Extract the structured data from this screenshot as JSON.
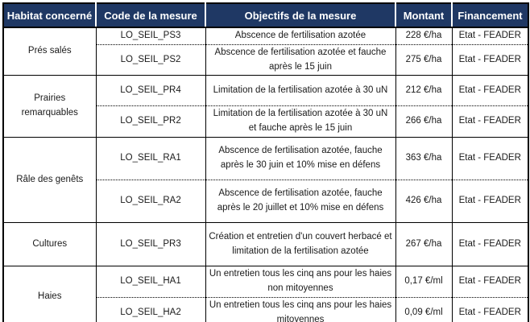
{
  "table": {
    "headers": [
      "Habitat concerné",
      "Code de la mesure",
      "Objectifs de la mesure",
      "Montant",
      "Financement"
    ],
    "groups": [
      {
        "habitat": "Prés salés",
        "rows": [
          {
            "code": "LO_SEIL_PS3",
            "objective": "Abscence de fertilisation azotée",
            "montant": "228 €/ha",
            "financement": "Etat - FEADER"
          },
          {
            "code": "LO_SEIL_PS2",
            "objective": "Abscence de fertilisation azotée et fauche après le 15 juin",
            "montant": "275 €/ha",
            "financement": "Etat - FEADER"
          }
        ]
      },
      {
        "habitat": "Prairies remarquables",
        "rows": [
          {
            "code": "LO_SEIL_PR4",
            "objective": "Limitation de la fertilisation azotée à 30 uN",
            "montant": "212 €/ha",
            "financement": "Etat - FEADER"
          },
          {
            "code": "LO_SEIL_PR2",
            "objective": "Limitation de la fertilisation azotée à 30 uN et fauche après le 15 juin",
            "montant": "266 €/ha",
            "financement": "Etat - FEADER"
          }
        ]
      },
      {
        "habitat": "Râle des genêts",
        "rows": [
          {
            "code": "LO_SEIL_RA1",
            "objective": "Abscence de fertilisation azotée, fauche après le 30 juin et 10% mise en défens",
            "montant": "363 €/ha",
            "financement": "Etat - FEADER"
          },
          {
            "code": "LO_SEIL_RA2",
            "objective": "Abscence de fertilisation azotée, fauche après le 20 juillet et 10% mise en défens",
            "montant": "426 €/ha",
            "financement": "Etat - FEADER"
          }
        ]
      },
      {
        "habitat": "Cultures",
        "rows": [
          {
            "code": "LO_SEIL_PR3",
            "objective": "Création et entretien d'un couvert herbacé et limitation de la fertilisation azotée",
            "montant": "267 €/ha",
            "financement": "Etat - FEADER"
          }
        ]
      },
      {
        "habitat": "Haies",
        "rows": [
          {
            "code": "LO_SEIL_HA1",
            "objective": "Un entretien tous les cinq ans pour les haies non mitoyennes",
            "montant": "0,17 €/ml",
            "financement": "Etat - FEADER"
          },
          {
            "code": "LO_SEIL_HA2",
            "objective": "Un entretien tous les cinq ans pour les haies mitoyennes",
            "montant": "0,09 €/ml",
            "financement": "Etat - FEADER"
          }
        ]
      }
    ]
  },
  "colors": {
    "header_bg": "#1f3864",
    "header_text": "#ffffff",
    "border": "#000000"
  }
}
